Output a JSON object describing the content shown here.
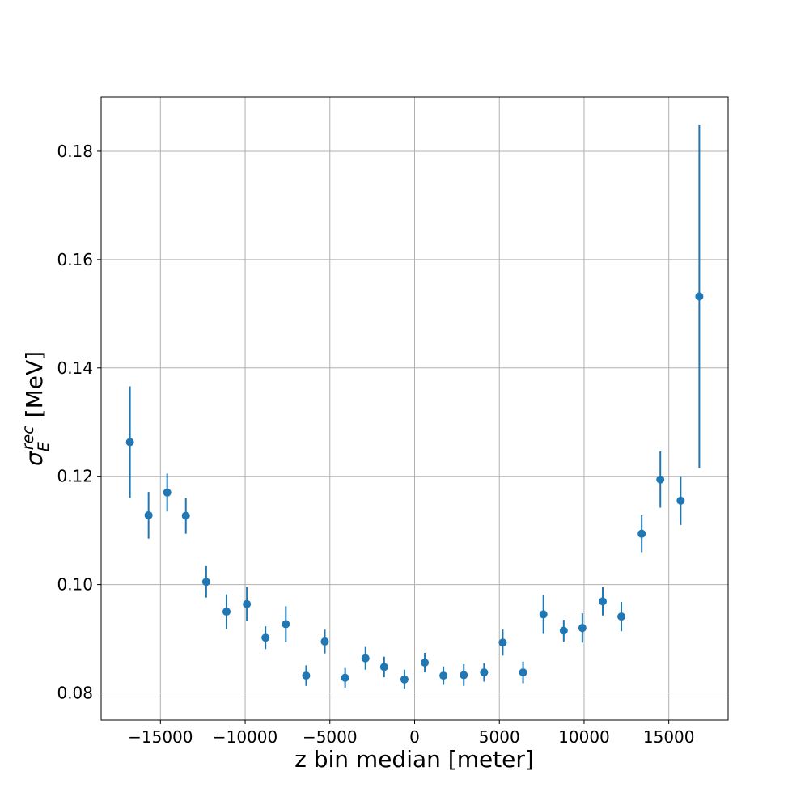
{
  "chart_data": {
    "type": "scatter",
    "title": "",
    "xlabel": "z bin median [meter]",
    "ylabel_symbol": "σ",
    "ylabel_sub": "E",
    "ylabel_sup": "rec",
    "ylabel_unit": "[MeV]",
    "xlim": [
      -18500,
      18500
    ],
    "ylim": [
      0.075,
      0.19
    ],
    "xticks": [
      -15000,
      -10000,
      -5000,
      0,
      5000,
      10000,
      15000
    ],
    "xtick_labels": [
      "−15000",
      "−10000",
      "−5000",
      "0",
      "5000",
      "10000",
      "15000"
    ],
    "yticks": [
      0.08,
      0.1,
      0.12,
      0.14,
      0.16,
      0.18
    ],
    "ytick_labels": [
      "0.08",
      "0.10",
      "0.12",
      "0.14",
      "0.16",
      "0.18"
    ],
    "grid": true,
    "color": "#1f77b4",
    "series": [
      {
        "name": "sigma_E_rec",
        "points": [
          {
            "x": -16800,
            "y": 0.1263,
            "yerr": 0.0103
          },
          {
            "x": -15700,
            "y": 0.1128,
            "yerr": 0.0043
          },
          {
            "x": -14600,
            "y": 0.117,
            "yerr": 0.0035
          },
          {
            "x": -13500,
            "y": 0.1127,
            "yerr": 0.0033
          },
          {
            "x": -12300,
            "y": 0.1005,
            "yerr": 0.0029
          },
          {
            "x": -11100,
            "y": 0.095,
            "yerr": 0.0032
          },
          {
            "x": -9900,
            "y": 0.0964,
            "yerr": 0.0031
          },
          {
            "x": -8800,
            "y": 0.0902,
            "yerr": 0.0021
          },
          {
            "x": -7600,
            "y": 0.0927,
            "yerr": 0.0033
          },
          {
            "x": -6400,
            "y": 0.0832,
            "yerr": 0.0019
          },
          {
            "x": -5300,
            "y": 0.0895,
            "yerr": 0.0022
          },
          {
            "x": -4100,
            "y": 0.0828,
            "yerr": 0.0018
          },
          {
            "x": -2900,
            "y": 0.0864,
            "yerr": 0.0021
          },
          {
            "x": -1800,
            "y": 0.0848,
            "yerr": 0.0019
          },
          {
            "x": -600,
            "y": 0.0825,
            "yerr": 0.0018
          },
          {
            "x": 600,
            "y": 0.0856,
            "yerr": 0.0018
          },
          {
            "x": 1700,
            "y": 0.0832,
            "yerr": 0.0017
          },
          {
            "x": 2900,
            "y": 0.0833,
            "yerr": 0.002
          },
          {
            "x": 4100,
            "y": 0.0838,
            "yerr": 0.0017
          },
          {
            "x": 5200,
            "y": 0.0893,
            "yerr": 0.0024
          },
          {
            "x": 6400,
            "y": 0.0838,
            "yerr": 0.002
          },
          {
            "x": 7600,
            "y": 0.0945,
            "yerr": 0.0036
          },
          {
            "x": 8800,
            "y": 0.0915,
            "yerr": 0.002
          },
          {
            "x": 9900,
            "y": 0.092,
            "yerr": 0.0027
          },
          {
            "x": 11100,
            "y": 0.0969,
            "yerr": 0.0026
          },
          {
            "x": 12200,
            "y": 0.0941,
            "yerr": 0.0027
          },
          {
            "x": 13400,
            "y": 0.1094,
            "yerr": 0.0034
          },
          {
            "x": 14500,
            "y": 0.1194,
            "yerr": 0.0052
          },
          {
            "x": 15700,
            "y": 0.1155,
            "yerr": 0.0045
          },
          {
            "x": 16800,
            "y": 0.1532,
            "yerr": 0.0317
          }
        ]
      }
    ]
  }
}
